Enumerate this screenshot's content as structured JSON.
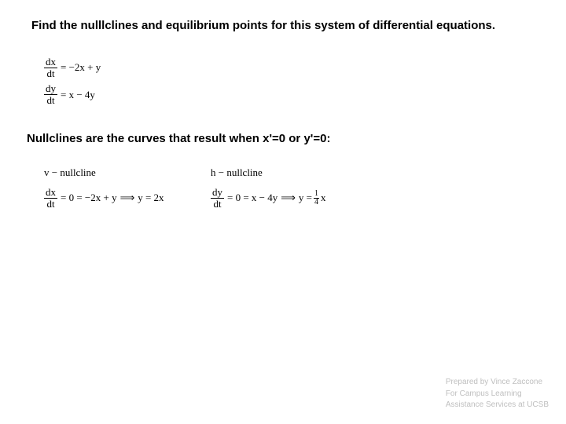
{
  "title": "Find the nulllclines and equilibrium points for this system of differential equations.",
  "system": {
    "eq1": {
      "num": "dx",
      "den": "dt",
      "rhs": "= −2x + y"
    },
    "eq2": {
      "num": "dy",
      "den": "dt",
      "rhs": "= x − 4y"
    }
  },
  "subtitle": "Nullclines are the curves that result when x'=0 or y'=0:",
  "nullclines": {
    "v": {
      "label": "v − nullcline",
      "frac_num": "dx",
      "frac_den": "dt",
      "mid": "= 0 = −2x + y",
      "arrow": "⟹",
      "result": "y = 2x"
    },
    "h": {
      "label": "h − nullcline",
      "frac_num": "dy",
      "frac_den": "dt",
      "mid": "= 0 = x − 4y",
      "arrow": "⟹",
      "result_prefix": "y =",
      "result_frac_num": "1",
      "result_frac_den": "4",
      "result_suffix": "x"
    }
  },
  "footer": {
    "line1": "Prepared by Vince Zaccone",
    "line2": "For Campus Learning",
    "line3": "Assistance Services at UCSB"
  },
  "colors": {
    "text": "#000000",
    "footer": "#bfbfbf",
    "background": "#ffffff"
  }
}
